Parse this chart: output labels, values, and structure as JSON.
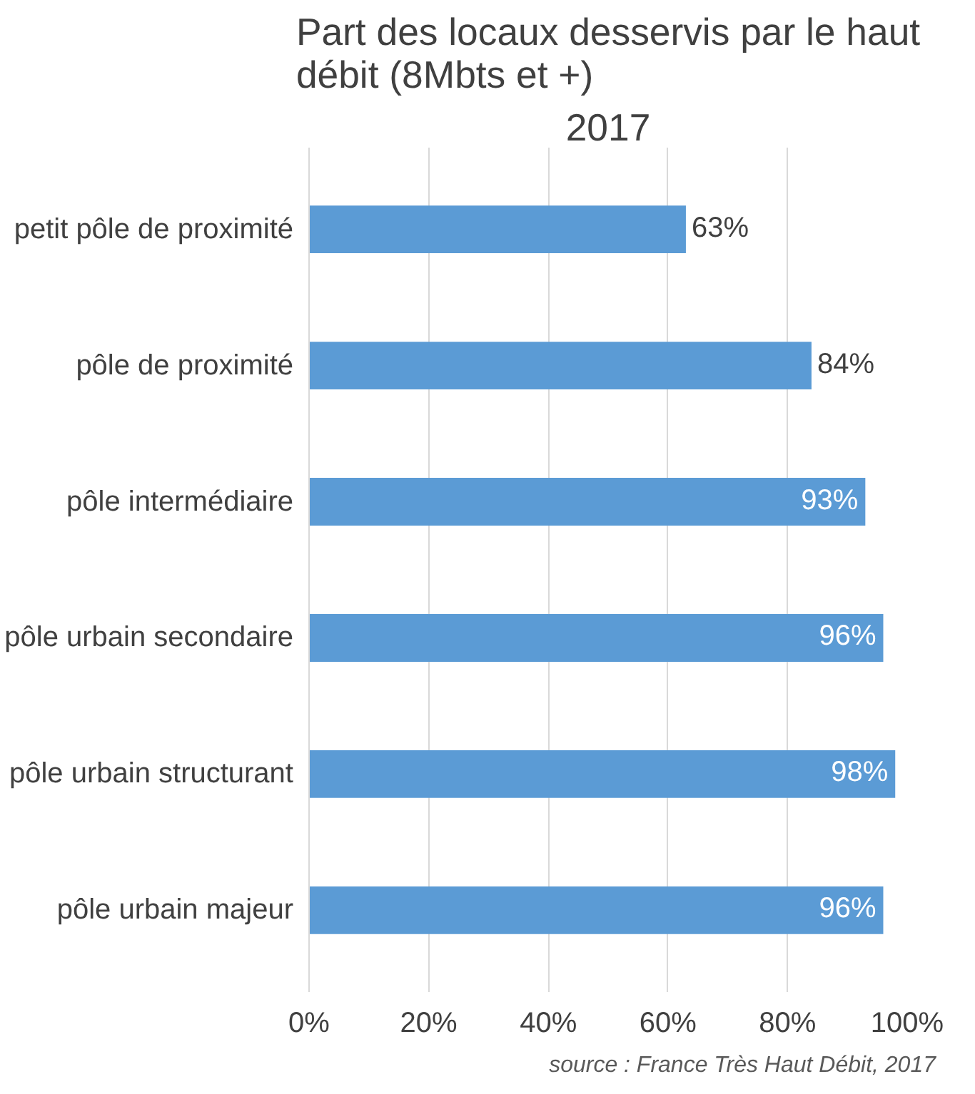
{
  "chart_data": {
    "type": "bar",
    "orientation": "horizontal",
    "title": "Part des locaux desservis par le haut débit (8Mbts et +)",
    "subtitle": "2017",
    "categories": [
      "petit pôle de proximité",
      "pôle de proximité",
      "pôle intermédiaire",
      "pôle urbain secondaire",
      "pôle urbain structurant",
      "pôle urbain majeur"
    ],
    "values": [
      63,
      84,
      93,
      96,
      98,
      96
    ],
    "value_labels": [
      "63%",
      "84%",
      "93%",
      "96%",
      "98%",
      "96%"
    ],
    "color": "#5b9bd5",
    "xlim": [
      0,
      100
    ],
    "xticks": [
      {
        "value": 0,
        "label": "0%"
      },
      {
        "value": 20,
        "label": "20%"
      },
      {
        "value": 40,
        "label": "40%"
      },
      {
        "value": 60,
        "label": "60%"
      },
      {
        "value": 80,
        "label": "80%"
      },
      {
        "value": 100,
        "label": "100%"
      }
    ],
    "grid": "x",
    "annotations": [
      "source : France Très Haut Débit, 2017"
    ]
  }
}
